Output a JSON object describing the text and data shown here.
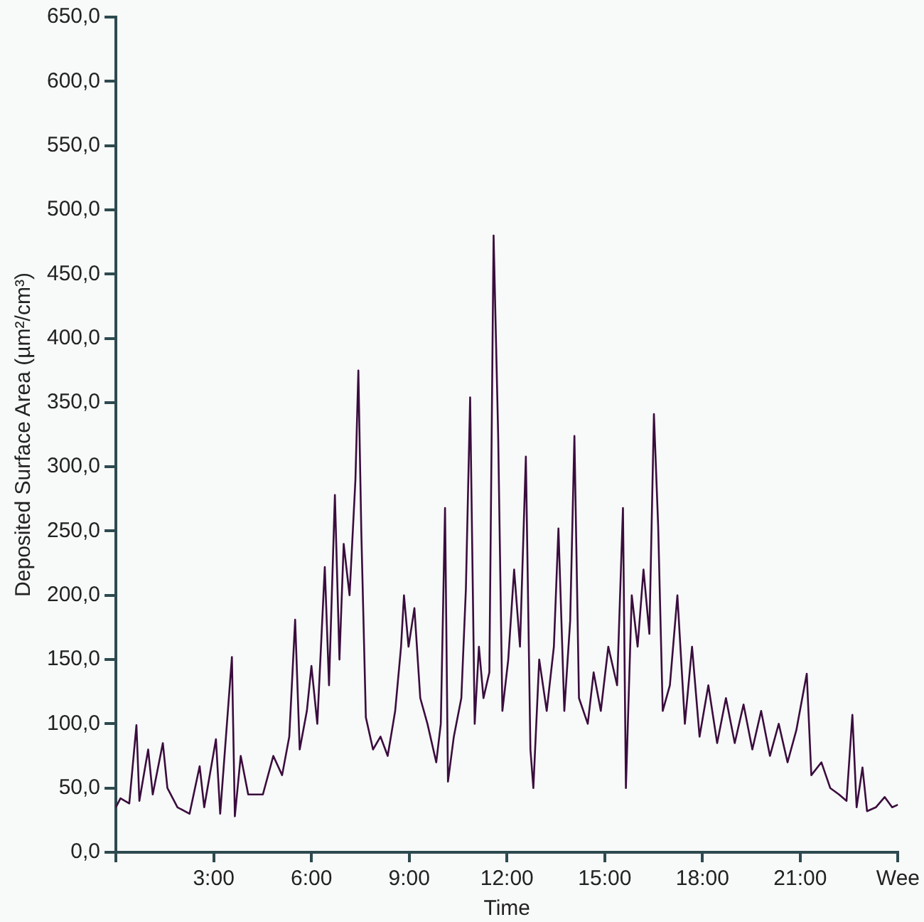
{
  "chart_data": {
    "type": "line",
    "xlabel": "Time",
    "ylabel": "Deposited Surface Area (µm²/cm³)",
    "x": [
      0,
      0.14,
      0.41,
      0.63,
      0.72,
      0.99,
      1.13,
      1.44,
      1.58,
      1.89,
      2.26,
      2.57,
      2.71,
      3.07,
      3.2,
      3.56,
      3.65,
      3.83,
      4.06,
      4.51,
      4.83,
      5.1,
      5.32,
      5.5,
      5.64,
      5.86,
      6.0,
      6.18,
      6.41,
      6.54,
      6.72,
      6.86,
      6.99,
      7.17,
      7.35,
      7.44,
      7.53,
      7.67,
      7.89,
      8.12,
      8.34,
      8.57,
      8.75,
      8.84,
      8.98,
      9.16,
      9.34,
      9.56,
      9.83,
      9.97,
      10.1,
      10.19,
      10.37,
      10.6,
      10.74,
      10.87,
      11.01,
      11.14,
      11.28,
      11.46,
      11.59,
      11.73,
      11.86,
      12.04,
      12.22,
      12.4,
      12.58,
      12.72,
      12.81,
      12.99,
      13.22,
      13.44,
      13.58,
      13.76,
      13.94,
      14.07,
      14.21,
      14.48,
      14.66,
      14.88,
      15.11,
      15.38,
      15.56,
      15.65,
      15.83,
      16.01,
      16.19,
      16.37,
      16.51,
      16.64,
      16.78,
      17.0,
      17.23,
      17.46,
      17.68,
      17.91,
      18.18,
      18.45,
      18.72,
      18.99,
      19.26,
      19.53,
      19.8,
      20.07,
      20.34,
      20.61,
      20.88,
      21.2,
      21.34,
      21.65,
      21.92,
      22.19,
      22.42,
      22.6,
      22.73,
      22.91,
      23.05,
      23.32,
      23.59,
      23.82,
      24.0
    ],
    "series": [
      {
        "color": "#3a0d3d",
        "values": [
          35,
          42,
          38,
          99,
          40,
          80,
          45,
          85,
          50,
          35,
          30,
          67,
          35,
          88,
          30,
          152,
          28,
          75,
          45,
          45,
          75,
          60,
          90,
          181,
          80,
          110,
          145,
          100,
          222,
          130,
          278,
          150,
          240,
          200,
          290,
          375,
          250,
          105,
          80,
          90,
          75,
          110,
          160,
          200,
          160,
          190,
          120,
          100,
          70,
          100,
          268,
          55,
          90,
          120,
          205,
          354,
          100,
          160,
          120,
          140,
          480,
          325,
          110,
          150,
          220,
          160,
          308,
          80,
          50,
          150,
          110,
          160,
          252,
          110,
          180,
          324,
          120,
          100,
          140,
          110,
          160,
          130,
          268,
          50,
          200,
          160,
          220,
          170,
          341,
          254,
          110,
          130,
          200,
          100,
          160,
          90,
          130,
          85,
          120,
          85,
          115,
          80,
          110,
          75,
          100,
          70,
          95,
          139,
          60,
          70,
          50,
          45,
          40,
          107,
          35,
          66,
          32,
          35,
          43,
          35,
          37
        ]
      }
    ],
    "xlim": [
      0,
      24
    ],
    "xticks": [
      {
        "value": 0,
        "label": null
      },
      {
        "value": 3,
        "label": "3:00"
      },
      {
        "value": 6,
        "label": "6:00"
      },
      {
        "value": 9,
        "label": "9:00"
      },
      {
        "value": 12,
        "label": "12:00"
      },
      {
        "value": 15,
        "label": "15:00"
      },
      {
        "value": 18,
        "label": "18:00"
      },
      {
        "value": 21,
        "label": "21:00"
      },
      {
        "value": 24,
        "label": "Wee"
      }
    ],
    "ylim": [
      0,
      650
    ],
    "yticks": [
      {
        "value": 0,
        "label": "0,0"
      },
      {
        "value": 50,
        "label": "50,0"
      },
      {
        "value": 100,
        "label": "100,0"
      },
      {
        "value": 150,
        "label": "150,0"
      },
      {
        "value": 200,
        "label": "200,0"
      },
      {
        "value": 250,
        "label": "250,0"
      },
      {
        "value": 300,
        "label": "300,0"
      },
      {
        "value": 350,
        "label": "350,0"
      },
      {
        "value": 400,
        "label": "400,0"
      },
      {
        "value": 450,
        "label": "450,0"
      },
      {
        "value": 500,
        "label": "500,0"
      },
      {
        "value": 550,
        "label": "550,0"
      },
      {
        "value": 600,
        "label": "600,0"
      },
      {
        "value": 650,
        "label": "650,0"
      }
    ],
    "grid": false,
    "legend": false,
    "marker": "none",
    "line_style": "solid"
  }
}
